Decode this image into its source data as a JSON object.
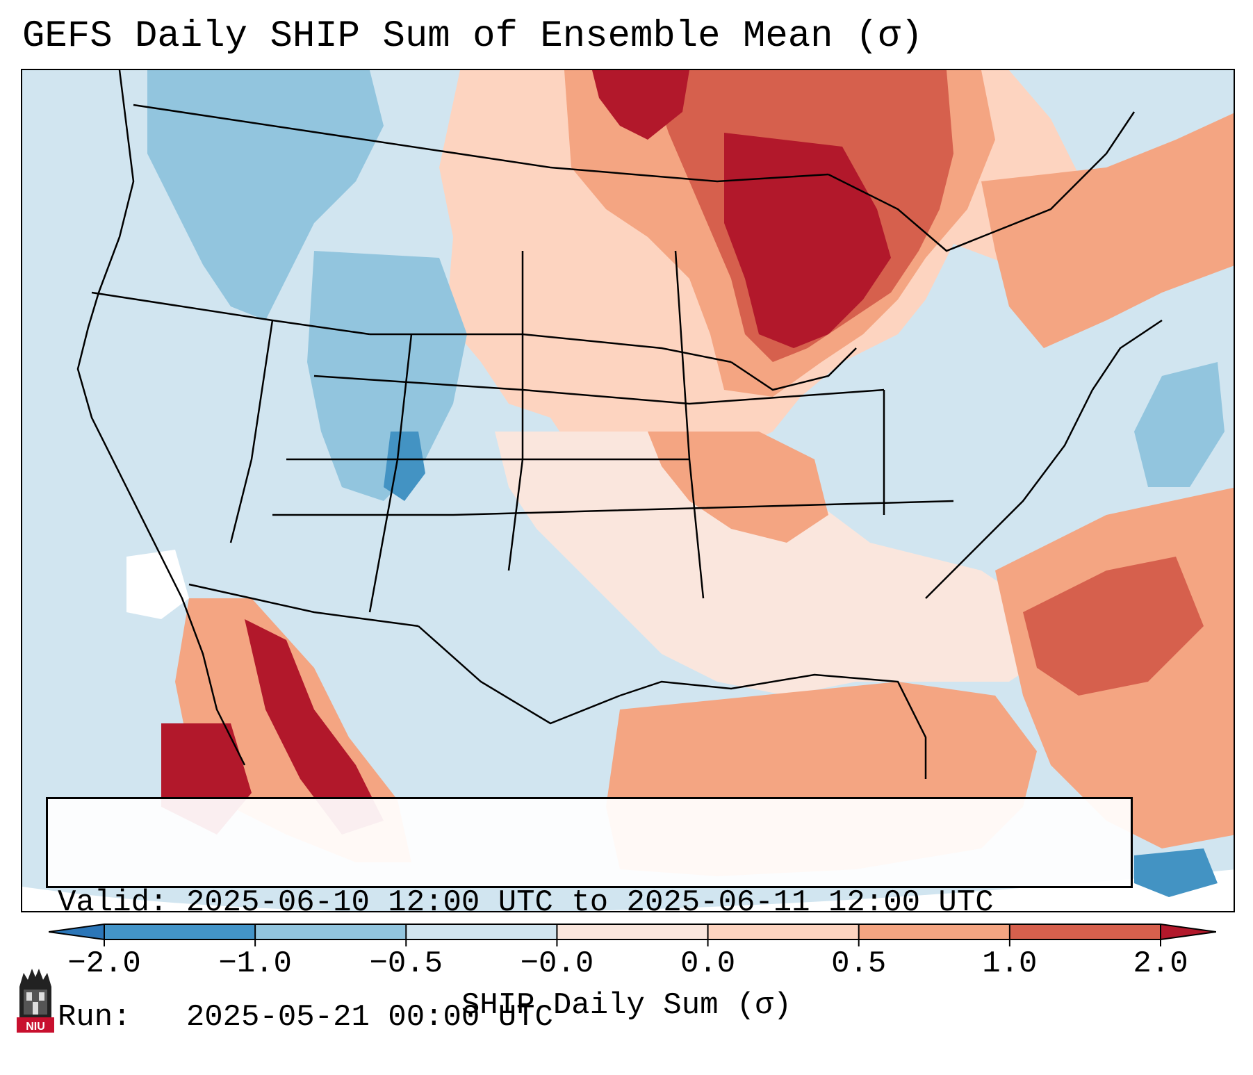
{
  "title": "GEFS Daily SHIP Sum of Ensemble Mean (σ)",
  "info": {
    "valid_label": "Valid:",
    "valid_value": "2025-06-10 12:00 UTC to 2025-06-11 12:00 UTC",
    "run_label": "Run:",
    "run_value": "2025-05-21 00:00 UTC"
  },
  "colorbar": {
    "label": "SHIP Daily Sum (σ)",
    "ticks": [
      "−2.0",
      "−1.0",
      "−0.5",
      "−0.0",
      "0.0",
      "0.5",
      "1.0",
      "2.0"
    ],
    "colors": [
      "#2b76b8",
      "#4394c8",
      "#92c5de",
      "#d1e5f0",
      "#fae6dd",
      "#fdd4c0",
      "#f4a582",
      "#d6604d",
      "#b2182b"
    ]
  },
  "logo": {
    "text": "NIU",
    "icon": "university-tower-icon"
  }
}
